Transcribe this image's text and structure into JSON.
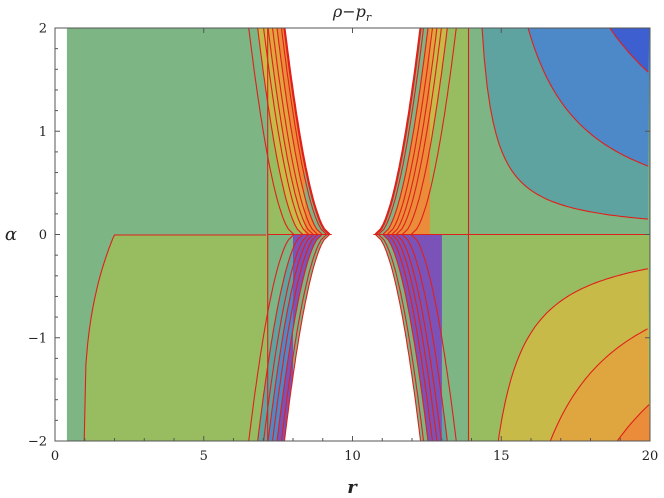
{
  "chart_data": {
    "type": "heatmap",
    "title": "ρ−p_r",
    "title_main": "ρ−p",
    "title_sub": "r",
    "xlabel": "r",
    "ylabel": "α",
    "xlim": [
      0,
      20
    ],
    "ylim": [
      -2,
      2
    ],
    "x_ticks": [
      0,
      5,
      10,
      15,
      20
    ],
    "y_ticks": [
      -2,
      -1,
      0,
      1,
      2
    ],
    "x_tick_labels": [
      "0",
      "5",
      "10",
      "15",
      "20"
    ],
    "y_tick_labels": [
      "−2",
      "−1",
      "0",
      "1",
      "2"
    ],
    "plot_domain_x": [
      0.4,
      20
    ],
    "excluded_region_r": [
      8.4,
      12.6
    ],
    "vertical_boundaries_r": [
      7.15,
      13.9
    ],
    "grid": false,
    "legend": "none",
    "colors": {
      "background_green": "#7db585",
      "yellow_green": "#98bd60",
      "teal": "#5ea3a0",
      "blue": "#4d88c8",
      "deep_blue": "#3d5fd0",
      "purple": "#7b52b8",
      "yellow": "#c8ba48",
      "orange": "#dfa640",
      "deep_orange": "#ea8c3a",
      "contour_line": "#e0201a",
      "frame": "#555555"
    }
  }
}
